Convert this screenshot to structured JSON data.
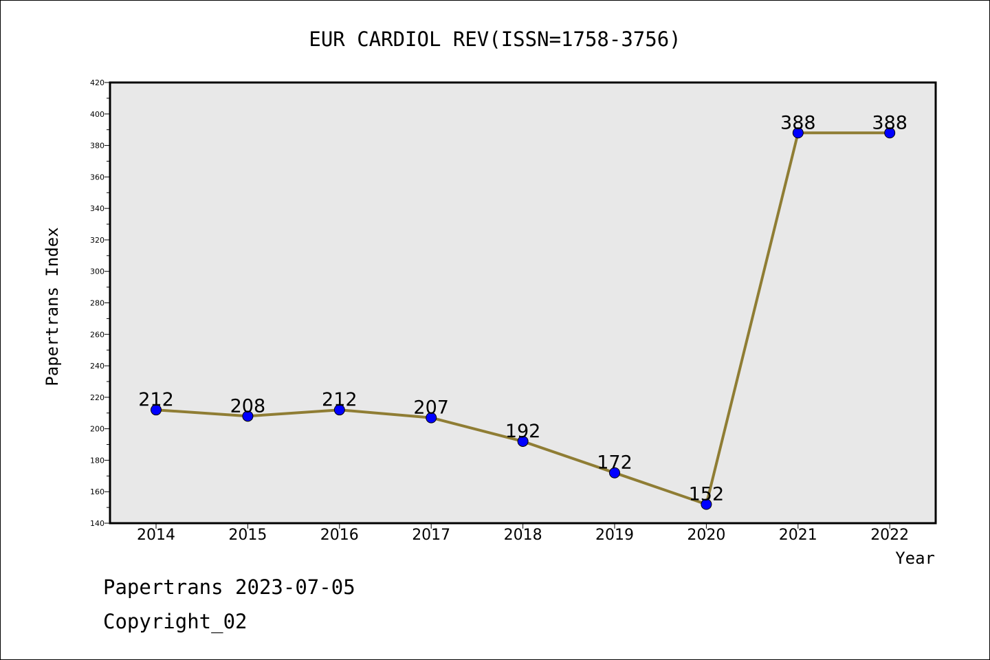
{
  "chart_data": {
    "type": "line",
    "title": "EUR CARDIOL REV(ISSN=1758-3756)",
    "xlabel": "Year",
    "ylabel": "Papertrans Index",
    "categories": [
      "2014",
      "2015",
      "2016",
      "2017",
      "2018",
      "2019",
      "2020",
      "2021",
      "2022"
    ],
    "values": [
      212,
      208,
      212,
      207,
      192,
      172,
      152,
      388,
      388
    ],
    "data_labels": [
      "212",
      "208",
      "212",
      "207",
      "192",
      "172",
      "152",
      "388",
      "388"
    ],
    "ylim": [
      140,
      420
    ],
    "yticks": [
      "140",
      "160",
      "180",
      "200",
      "220",
      "240",
      "260",
      "280",
      "300",
      "320",
      "340",
      "360",
      "380",
      "400",
      "420"
    ],
    "grid": false,
    "line_color": "#8f7d34",
    "marker_color": "#0000ff",
    "plot_background": "#e8e8e8"
  },
  "footer": {
    "line1": "Papertrans 2023-07-05",
    "line2": "Copyright_02"
  }
}
